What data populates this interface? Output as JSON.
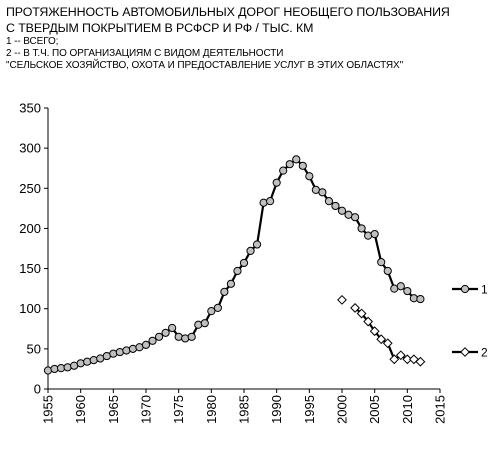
{
  "chart_data": {
    "type": "line",
    "title_lines": [
      "ПРОТЯЖЕННОСТЬ АВТОМОБИЛЬНЫХ ДОРОГ НЕОБЩЕГО ПОЛЬЗОВАНИЯ",
      "С ТВЕРДЫМ ПОКРЫТИЕМ В  РСФСР И  РФ  / ТЫС. КМ"
    ],
    "note_lines": [
      "1 -- ВСЕГО;",
      "2 -- В Т.Ч.  ПО ОРГАНИЗАЦИЯМ С ВИДОМ ДЕЯТЕЛЬНОСТИ",
      "\"СЕЛЬСКОЕ ХОЗЯЙСТВО, ОХОТА И ПРЕДОСТАВЛЕНИЕ УСЛУГ В ЭТИХ ОБЛАСТЯХ\""
    ],
    "xlim": [
      1955,
      2015
    ],
    "ylim": [
      0,
      350
    ],
    "xticks": [
      "1955",
      "1960",
      "1965",
      "1970",
      "1975",
      "1980",
      "1985",
      "1990",
      "1995",
      "2000",
      "2005",
      "2010",
      "2015"
    ],
    "yticks": [
      "0",
      "50",
      "100",
      "150",
      "200",
      "250",
      "300",
      "350"
    ],
    "grid": false,
    "legend_position": "right",
    "series": [
      {
        "name": "1",
        "marker": "circle",
        "color": "#000000",
        "marker_fill": "#c0c0c0",
        "x": [
          1955,
          1956,
          1957,
          1958,
          1959,
          1960,
          1961,
          1962,
          1963,
          1964,
          1965,
          1966,
          1967,
          1968,
          1969,
          1970,
          1971,
          1972,
          1973,
          1974,
          1975,
          1976,
          1977,
          1978,
          1979,
          1980,
          1981,
          1982,
          1983,
          1984,
          1985,
          1986,
          1987,
          1988,
          1989,
          1990,
          1991,
          1992,
          1993,
          1994,
          1995,
          1996,
          1997,
          1998,
          1999,
          2000,
          2001,
          2002,
          2003,
          2004,
          2005,
          2006,
          2007,
          2008,
          2009,
          2010,
          2011,
          2012
        ],
        "y": [
          23,
          25,
          26,
          27,
          29,
          32,
          34,
          36,
          38,
          41,
          44,
          46,
          48,
          50,
          52,
          55,
          60,
          65,
          70,
          76,
          65,
          63,
          65,
          80,
          82,
          97,
          101,
          121,
          131,
          147,
          157,
          172,
          180,
          232,
          234,
          257,
          272,
          280,
          286,
          278,
          265,
          248,
          245,
          234,
          228,
          222,
          217,
          214,
          200,
          191,
          193,
          158,
          147,
          125,
          128,
          122,
          113,
          112
        ]
      },
      {
        "name": "2",
        "marker": "diamond",
        "color": "#000000",
        "marker_fill": "#ffffff",
        "x": [
          2000,
          2001,
          2002,
          2003,
          2004,
          2005,
          2006,
          2007,
          2008,
          2009,
          2010,
          2011,
          2012
        ],
        "y": [
          111,
          null,
          101,
          94,
          84,
          72,
          62,
          57,
          37,
          42,
          37,
          37,
          34
        ]
      }
    ]
  }
}
